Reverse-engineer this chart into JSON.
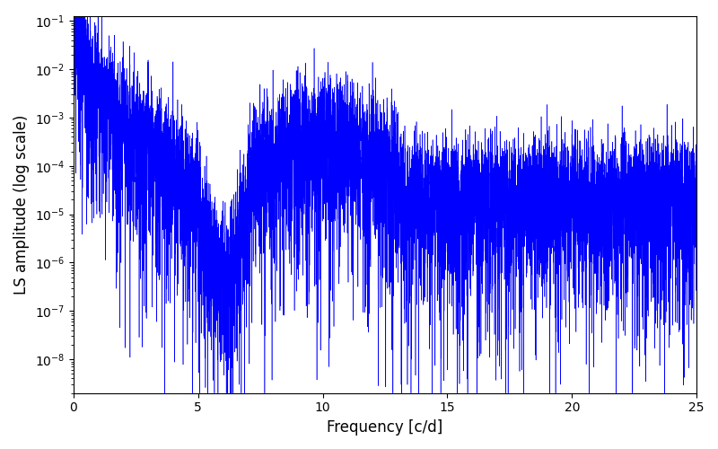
{
  "title": "",
  "xlabel": "Frequency [c/d]",
  "ylabel": "LS amplitude (log scale)",
  "line_color": "#0000ff",
  "xlim": [
    0,
    25
  ],
  "ylim_log_min": -8.7,
  "ylim_log_max": -0.9,
  "xmin": 0.0,
  "xmax": 25.0,
  "num_points": 8000,
  "seed": 7,
  "background_color": "#ffffff",
  "figsize": [
    8.0,
    5.0
  ],
  "dpi": 100
}
